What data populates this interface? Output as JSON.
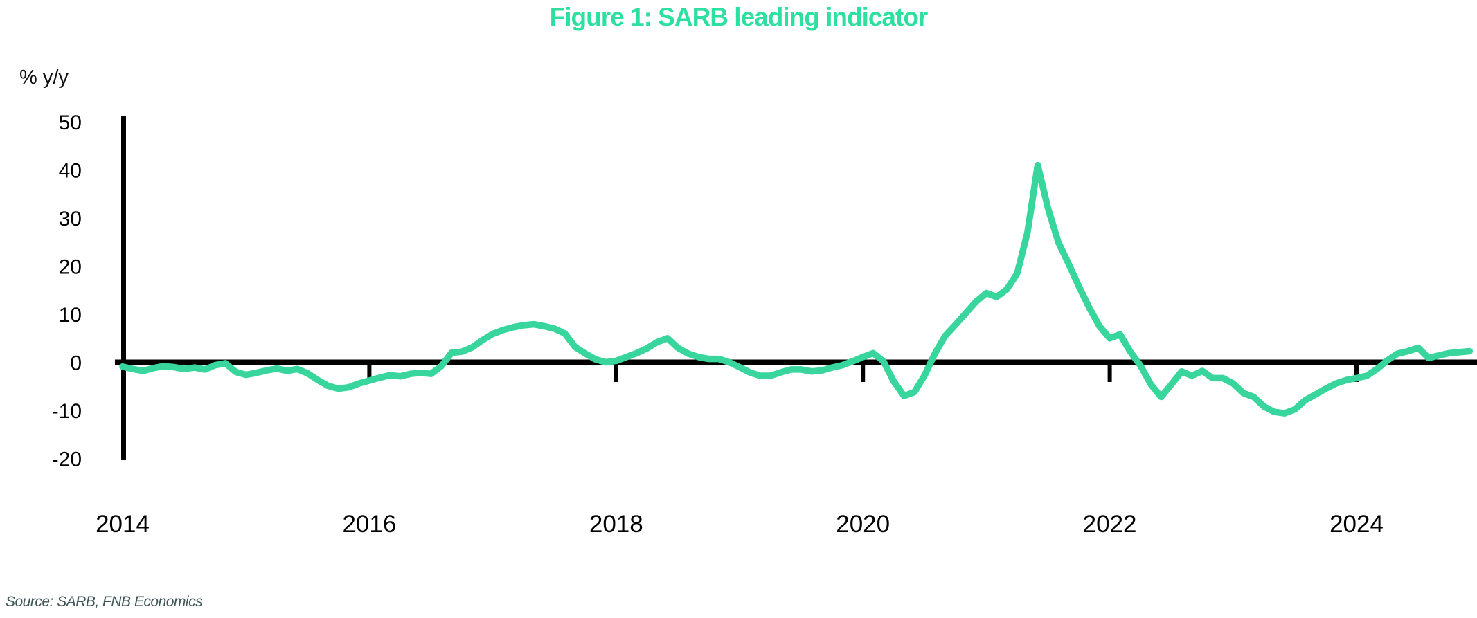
{
  "title": "Figure 1: SARB leading indicator",
  "y_axis_label": "% y/y",
  "source": "Source: SARB, FNB Economics",
  "colors": {
    "title": "#2ee0a0",
    "line": "#38d59c",
    "axis": "#000000",
    "source_text": "#3e5457"
  },
  "chart_data": {
    "type": "line",
    "title": "Figure 1: SARB leading indicator",
    "xlabel": "",
    "ylabel": "% y/y",
    "ylim": [
      -20,
      50
    ],
    "y_ticks": [
      50,
      40,
      30,
      20,
      10,
      0,
      -10,
      -20
    ],
    "x_tick_labels": [
      "2014",
      "2016",
      "2018",
      "2020",
      "2022",
      "2024"
    ],
    "x_start_year": 2014,
    "frequency": "monthly",
    "grid": false,
    "legend": "none",
    "series": [
      {
        "name": "SARB leading indicator (% y/y)",
        "values": [
          -0.9,
          -1.4,
          -1.8,
          -1.2,
          -0.8,
          -1.0,
          -1.4,
          -1.1,
          -1.5,
          -0.6,
          -0.2,
          -2.0,
          -2.6,
          -2.2,
          -1.7,
          -1.3,
          -1.8,
          -1.4,
          -2.3,
          -3.7,
          -4.9,
          -5.5,
          -5.2,
          -4.4,
          -3.8,
          -3.2,
          -2.7,
          -2.9,
          -2.4,
          -2.2,
          -2.4,
          -0.8,
          2.0,
          2.2,
          3.1,
          4.6,
          5.9,
          6.7,
          7.3,
          7.7,
          7.9,
          7.5,
          7.0,
          6.0,
          3.2,
          1.8,
          0.6,
          0.0,
          0.3,
          1.1,
          1.9,
          2.9,
          4.2,
          5.0,
          3.0,
          1.8,
          1.1,
          0.7,
          0.7,
          0.0,
          -1.0,
          -2.1,
          -2.8,
          -2.8,
          -2.1,
          -1.5,
          -1.5,
          -1.9,
          -1.7,
          -1.1,
          -0.6,
          0.2,
          1.1,
          1.9,
          0.2,
          -4.0,
          -7.0,
          -6.2,
          -2.7,
          1.8,
          5.5,
          7.8,
          10.2,
          12.6,
          14.4,
          13.6,
          15.2,
          18.5,
          27.0,
          41.0,
          32.0,
          25.0,
          20.5,
          15.8,
          11.4,
          7.5,
          5.0,
          5.8,
          2.2,
          -0.7,
          -4.6,
          -7.2,
          -4.6,
          -1.9,
          -2.8,
          -1.8,
          -3.3,
          -3.3,
          -4.4,
          -6.4,
          -7.2,
          -9.2,
          -10.3,
          -10.6,
          -9.8,
          -7.9,
          -6.7,
          -5.5,
          -4.4,
          -3.7,
          -3.3,
          -2.8,
          -1.4,
          0.4,
          1.8,
          2.3,
          3.0,
          0.9,
          1.4,
          1.9,
          2.1,
          2.3
        ]
      }
    ]
  }
}
